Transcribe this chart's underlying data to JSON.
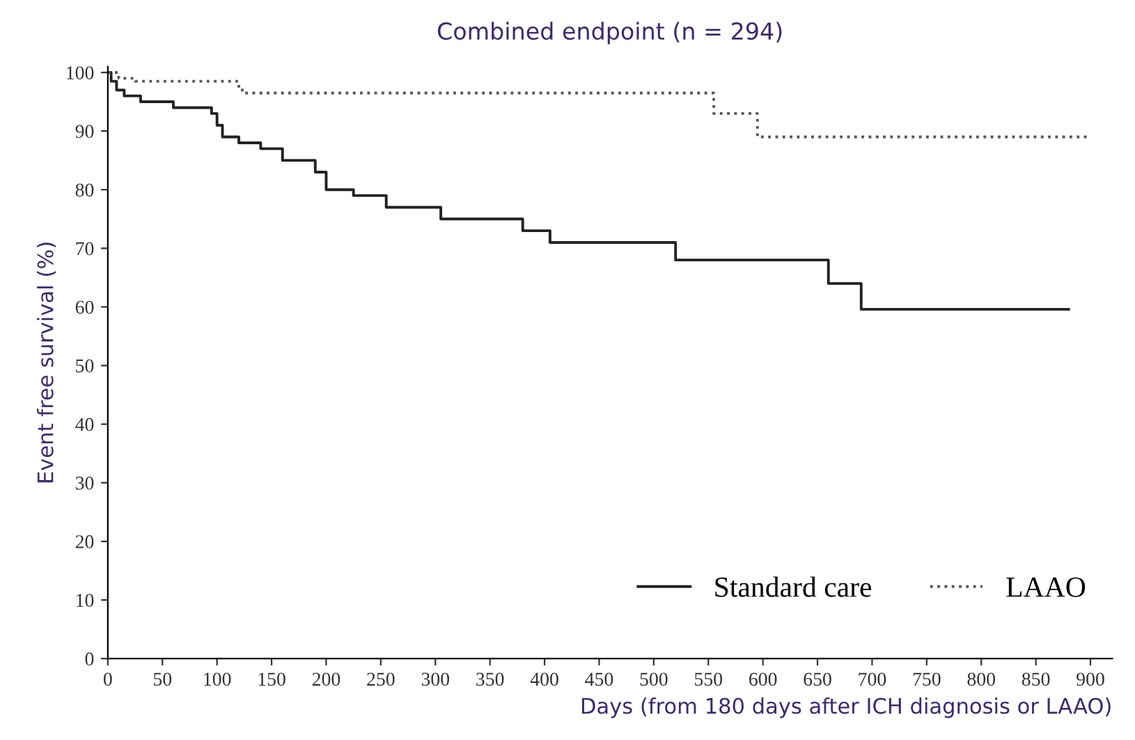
{
  "chart_data": {
    "type": "step",
    "title": "Combined endpoint (n = 294)",
    "xlabel": "Days (from 180 days after ICH diagnosis or LAAO)",
    "ylabel": "Event free survival (%)",
    "xlim": [
      0,
      920
    ],
    "xticks": [
      0,
      50,
      100,
      150,
      200,
      250,
      300,
      350,
      400,
      450,
      500,
      550,
      600,
      650,
      700,
      750,
      800,
      850,
      900
    ],
    "ylim": [
      0,
      101
    ],
    "yticks": [
      0,
      10,
      20,
      30,
      40,
      50,
      60,
      70,
      80,
      90,
      100
    ],
    "grid": false,
    "legend": "bottom right",
    "series": [
      {
        "name": "Standard care",
        "color": "#222222",
        "line_style": "solid",
        "x": [
          0,
          3,
          8,
          15,
          30,
          60,
          95,
          100,
          105,
          120,
          140,
          160,
          190,
          200,
          225,
          255,
          305,
          380,
          405,
          520,
          660,
          690,
          880
        ],
        "values": [
          100,
          98.5,
          97,
          96,
          95,
          94,
          93,
          91,
          89,
          88,
          87,
          85,
          83,
          80,
          79,
          77,
          75,
          73,
          71,
          68,
          64,
          59.6,
          59.6
        ]
      },
      {
        "name": "LAAO",
        "color": "#555555",
        "line_style": "dotted",
        "x": [
          0,
          10,
          25,
          120,
          125,
          555,
          595,
          900
        ],
        "values": [
          100,
          99,
          98.5,
          97,
          96.5,
          93,
          89,
          89
        ]
      }
    ]
  }
}
